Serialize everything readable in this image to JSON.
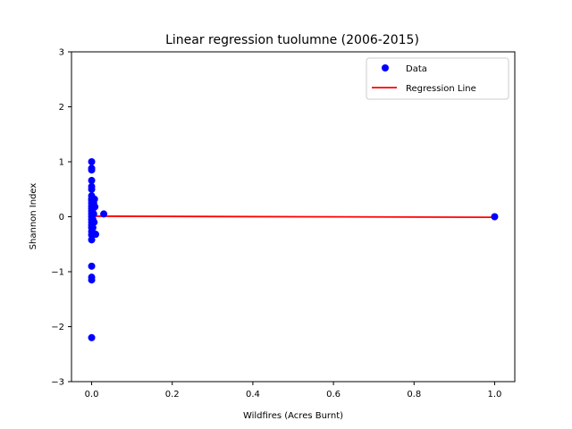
{
  "chart_data": {
    "type": "scatter",
    "title": "Linear regression tuolumne (2006-2015)",
    "xlabel": "Wildfires (Acres Burnt)",
    "ylabel": "Shannon Index",
    "xlim": [
      -0.05,
      1.05
    ],
    "ylim": [
      -3,
      3
    ],
    "xticks": [
      0.0,
      0.2,
      0.4,
      0.6,
      0.8,
      1.0
    ],
    "xtick_labels": [
      "0.0",
      "0.2",
      "0.4",
      "0.6",
      "0.8",
      "1.0"
    ],
    "yticks": [
      -3,
      -2,
      -1,
      0,
      1,
      2,
      3
    ],
    "ytick_labels": [
      "−3",
      "−2",
      "−1",
      "0",
      "1",
      "2",
      "3"
    ],
    "grid": false,
    "legend_position": "top-right",
    "colors": {
      "data": "#0000ff",
      "regression": "#ff0000"
    },
    "series": [
      {
        "name": "Data",
        "kind": "scatter",
        "points": [
          [
            0.0,
            1.0
          ],
          [
            0.0,
            0.88
          ],
          [
            0.0,
            0.85
          ],
          [
            0.0,
            0.66
          ],
          [
            0.0,
            0.55
          ],
          [
            0.0,
            0.5
          ],
          [
            0.0,
            0.38
          ],
          [
            0.0,
            0.33
          ],
          [
            0.0,
            0.3
          ],
          [
            0.0,
            0.25
          ],
          [
            0.0,
            0.2
          ],
          [
            0.0,
            0.15
          ],
          [
            0.0,
            0.1
          ],
          [
            0.0,
            0.05
          ],
          [
            0.0,
            0.0
          ],
          [
            0.0,
            -0.05
          ],
          [
            0.0,
            -0.1
          ],
          [
            0.0,
            -0.15
          ],
          [
            0.0,
            -0.2
          ],
          [
            0.0,
            -0.27
          ],
          [
            0.0,
            -0.33
          ],
          [
            0.0,
            -0.42
          ],
          [
            0.0,
            -0.9
          ],
          [
            0.0,
            -1.1
          ],
          [
            0.0,
            -1.15
          ],
          [
            0.0,
            -2.2
          ],
          [
            0.002,
            0.3
          ],
          [
            0.002,
            0.1
          ],
          [
            0.003,
            -0.05
          ],
          [
            0.003,
            -0.2
          ],
          [
            0.004,
            -0.3
          ],
          [
            0.005,
            0.25
          ],
          [
            0.005,
            0.05
          ],
          [
            0.006,
            -0.1
          ],
          [
            0.007,
            0.32
          ],
          [
            0.008,
            0.18
          ],
          [
            0.01,
            -0.32
          ],
          [
            0.03,
            0.05
          ],
          [
            1.0,
            0.0
          ]
        ]
      },
      {
        "name": "Regression Line",
        "kind": "line",
        "points": [
          [
            0.0,
            0.01
          ],
          [
            1.0,
            -0.01
          ]
        ]
      }
    ]
  }
}
